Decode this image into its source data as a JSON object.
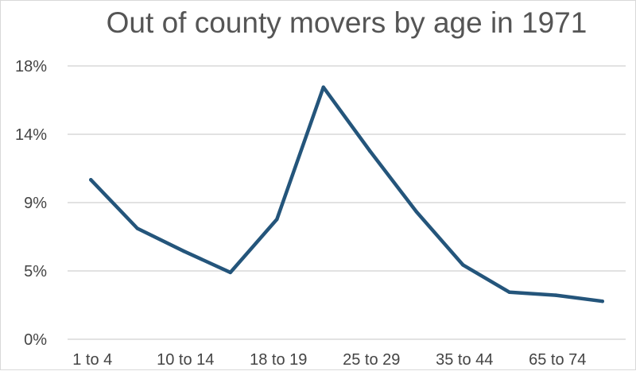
{
  "chart_data": {
    "type": "line",
    "title": "Out of county movers by age in 1971",
    "xlabel": "",
    "ylabel": "",
    "ylim": [
      0,
      18
    ],
    "y_ticks": [
      {
        "value": 0,
        "label": "0%"
      },
      {
        "value": 4.5,
        "label": "5%"
      },
      {
        "value": 9,
        "label": "9%"
      },
      {
        "value": 13.5,
        "label": "14%"
      },
      {
        "value": 18,
        "label": "18%"
      }
    ],
    "categories": [
      "1 to 4",
      "",
      "10 to 14",
      "",
      "18 to 19",
      "",
      "25 to 29",
      "",
      "35 to 44",
      "",
      "65 to 74",
      ""
    ],
    "series": [
      {
        "values": [
          10.5,
          7.3,
          5.8,
          4.4,
          7.9,
          16.6,
          12.4,
          8.4,
          4.9,
          3.1,
          2.9,
          2.5
        ],
        "color": "#24557b"
      }
    ],
    "grid": true,
    "legend": "none"
  }
}
